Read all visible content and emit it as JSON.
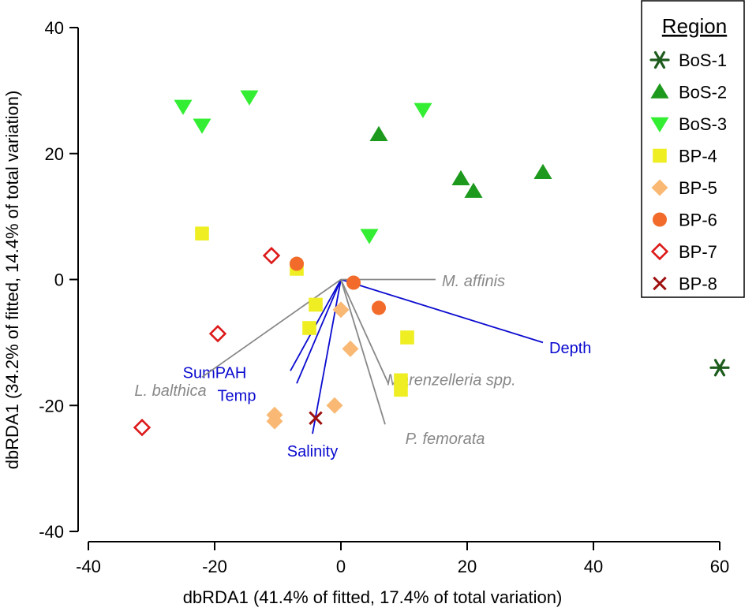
{
  "chart_data": {
    "type": "scatter",
    "title": "",
    "xlabel": "dbRDA1 (41.4% of fitted, 17.4% of total variation)",
    "ylabel": "dbRDA1 (34.2% of fitted, 14.4% of total variation)",
    "xlim": [
      -40,
      60
    ],
    "ylim": [
      -40,
      40
    ],
    "xticks": [
      -40,
      -20,
      0,
      20,
      40,
      60
    ],
    "yticks": [
      -40,
      -20,
      0,
      20,
      40
    ],
    "xtick_labels": [
      "-40",
      "-20",
      "0",
      "20",
      "40",
      "60"
    ],
    "ytick_labels": [
      "-40",
      "-20",
      "0",
      "20",
      "40"
    ],
    "legend": {
      "title": "Region",
      "position": "top-right"
    },
    "series": [
      {
        "name": "BoS-1",
        "marker": "asterisk",
        "color": "#1e5c1e",
        "points": [
          [
            60,
            -14
          ]
        ]
      },
      {
        "name": "BoS-2",
        "marker": "triangle-up",
        "color": "#1d9a1d",
        "points": [
          [
            6,
            23
          ],
          [
            19,
            16
          ],
          [
            21,
            14
          ],
          [
            32,
            17
          ]
        ]
      },
      {
        "name": "BoS-3",
        "marker": "triangle-down",
        "color": "#33ee33",
        "points": [
          [
            -25,
            27.5
          ],
          [
            -22,
            24.5
          ],
          [
            -14.5,
            29
          ],
          [
            13,
            27
          ],
          [
            4.5,
            7
          ]
        ]
      },
      {
        "name": "BP-4",
        "marker": "square",
        "color": "#eeee22",
        "points": [
          [
            -22,
            7.3
          ],
          [
            -7,
            1.7
          ],
          [
            -4,
            -4
          ],
          [
            -5,
            -7.7
          ],
          [
            10.5,
            -9.2
          ],
          [
            9.5,
            -16
          ],
          [
            9.5,
            -17.5
          ]
        ]
      },
      {
        "name": "BP-5",
        "marker": "diamond",
        "color": "#f9b873",
        "points": [
          [
            0,
            -4.8
          ],
          [
            1.5,
            -11
          ],
          [
            -1,
            -20
          ],
          [
            -10.5,
            -21.5
          ],
          [
            -10.5,
            -22.5
          ]
        ]
      },
      {
        "name": "BP-6",
        "marker": "circle",
        "color": "#f26b2a",
        "points": [
          [
            -7,
            2.5
          ],
          [
            2,
            -0.5
          ],
          [
            6,
            -4.5
          ]
        ]
      },
      {
        "name": "BP-7",
        "marker": "open-diamond",
        "color": "#dd1a1a",
        "points": [
          [
            -11,
            3.8
          ],
          [
            -19.5,
            -8.6
          ],
          [
            -31.5,
            -23.5
          ]
        ]
      },
      {
        "name": "BP-8",
        "marker": "cross",
        "color": "#9e1010",
        "points": [
          [
            -4,
            -22
          ]
        ]
      }
    ],
    "vectors": [
      {
        "label": "Depth",
        "group": "environment",
        "color": "#0a0ad0",
        "end": [
          32,
          -10
        ],
        "label_at": [
          33,
          -10.8
        ],
        "anchor": "start",
        "italic": false
      },
      {
        "label": "SumPAH",
        "group": "environment",
        "color": "#0a0ad0",
        "end": [
          -8,
          -14.5
        ],
        "label_at": [
          -20,
          -14.8
        ],
        "anchor": "middle",
        "italic": false
      },
      {
        "label": "Temp",
        "group": "environment",
        "color": "#0a0ad0",
        "end": [
          -7,
          -16.5
        ],
        "label_at": [
          -16.5,
          -18.4
        ],
        "anchor": "middle",
        "italic": false
      },
      {
        "label": "Salinity",
        "group": "environment",
        "color": "#0a0ad0",
        "end": [
          -4.5,
          -24.5
        ],
        "label_at": [
          -4.5,
          -27.2
        ],
        "anchor": "middle",
        "italic": false
      },
      {
        "label": "M. affinis",
        "group": "species",
        "color": "#888888",
        "end": [
          15,
          0
        ],
        "label_at": [
          16,
          -0.2
        ],
        "anchor": "start",
        "italic": true
      },
      {
        "label": "L. balthica",
        "group": "species",
        "color": "#888888",
        "end": [
          -22,
          -15.5
        ],
        "label_at": [
          -27,
          -17.6
        ],
        "anchor": "middle",
        "italic": true
      },
      {
        "label": "Marenzelleria spp.",
        "group": "species",
        "color": "#888888",
        "end": [
          7.5,
          -16.5
        ],
        "label_at": [
          17.5,
          -15.9
        ],
        "anchor": "middle",
        "italic": true
      },
      {
        "label": "P. femorata",
        "group": "species",
        "color": "#888888",
        "end": [
          7,
          -23
        ],
        "label_at": [
          16.5,
          -25.2
        ],
        "anchor": "middle",
        "italic": true
      }
    ]
  }
}
